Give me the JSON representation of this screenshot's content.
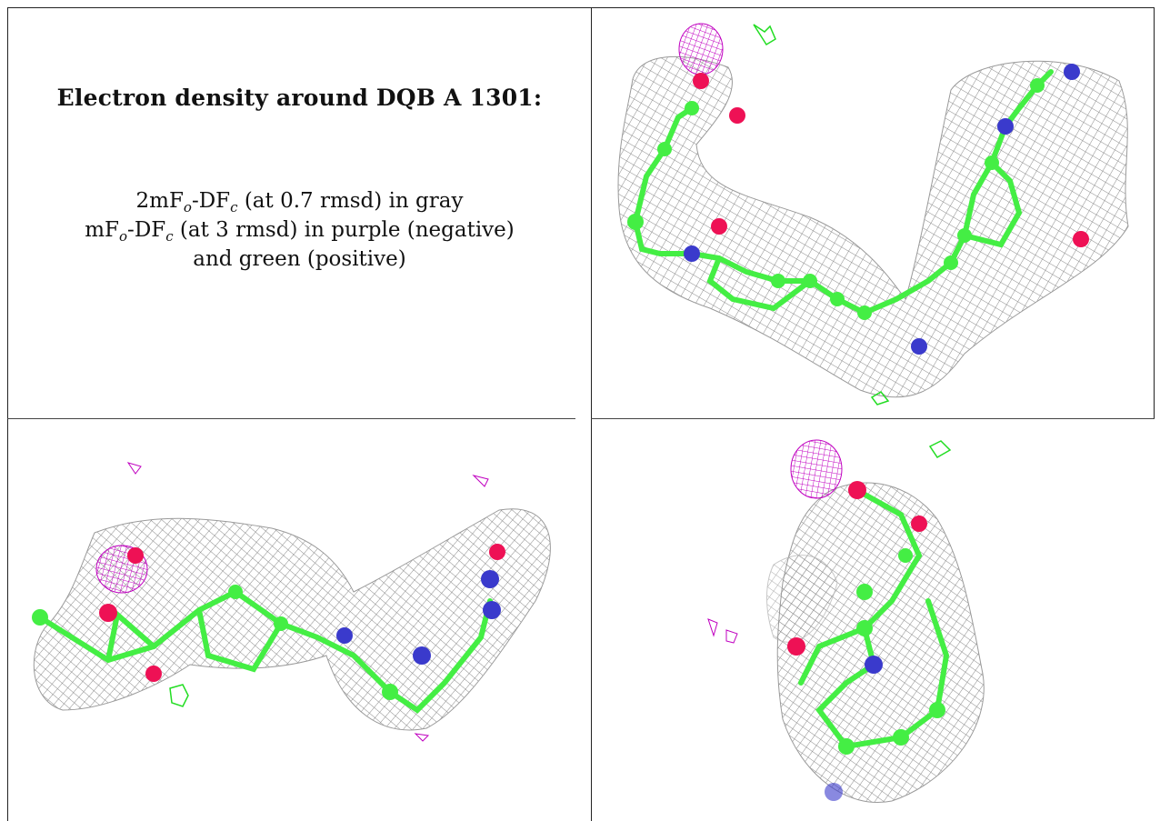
{
  "legend": {
    "title": "Electron density around DQB A 1301:",
    "line1": {
      "prefix": "2mF",
      "sub1": "o",
      "mid": "-DF",
      "sub2": "c",
      "suffix": " (at 0.7 rmsd) in gray"
    },
    "line2": {
      "prefix": "mF",
      "sub1": "o",
      "mid": "-DF",
      "sub2": "c",
      "suffix": " (at 3 rmsd) in purple (negative)"
    },
    "line3": "and green (positive)"
  },
  "colors": {
    "mesh_2fofc": "#8a8a8a",
    "mesh_negative": "#c000c0",
    "mesh_positive": "#22dd22",
    "carbon": "#44ee44",
    "nitrogen": "#3a3acc",
    "oxygen": "#ee1155"
  },
  "panels": [
    "view-1",
    "view-2",
    "view-3"
  ]
}
